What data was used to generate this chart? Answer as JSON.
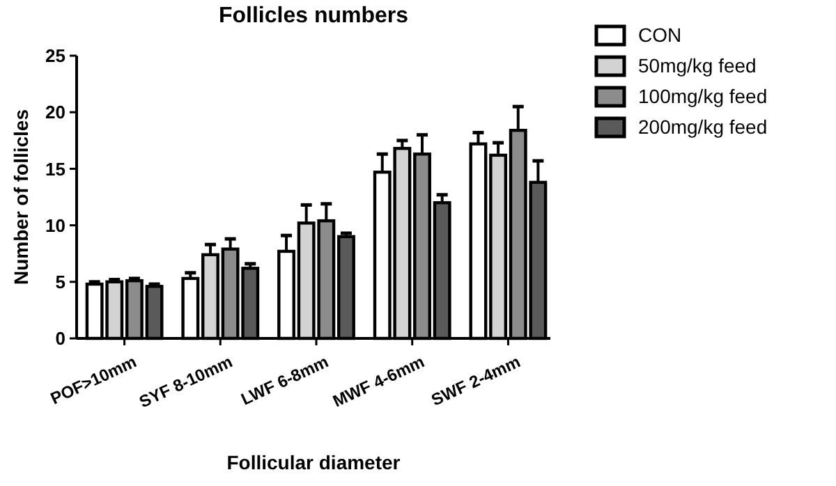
{
  "chart_data": {
    "type": "bar",
    "title": "Follicles numbers",
    "xlabel": "Follicular diameter",
    "ylabel": "Number of follicles",
    "categories": [
      "POF>10mm",
      "SYF 8-10mm",
      "LWF 6-8mm",
      "MWF 4-6mm",
      "SWF 2-4mm"
    ],
    "series": [
      {
        "name": "CON",
        "color": "#ffffff",
        "values": [
          4.8,
          5.3,
          7.7,
          14.7,
          17.2
        ],
        "errors": [
          [
            4.8,
            5.0
          ],
          [
            5.3,
            5.8
          ],
          [
            7.7,
            9.1
          ],
          [
            14.7,
            16.3
          ],
          [
            17.2,
            18.2
          ]
        ]
      },
      {
        "name": "50mg/kg feed",
        "color": "#d3d3d3",
        "values": [
          5.0,
          7.4,
          10.2,
          16.8,
          16.2
        ],
        "errors": [
          [
            5.0,
            5.2
          ],
          [
            7.4,
            8.3
          ],
          [
            10.2,
            11.8
          ],
          [
            16.8,
            17.5
          ],
          [
            16.2,
            17.3
          ]
        ]
      },
      {
        "name": "100mg/kg feed",
        "color": "#8c8c8c",
        "values": [
          5.1,
          7.9,
          10.4,
          16.3,
          18.4
        ],
        "errors": [
          [
            5.1,
            5.3
          ],
          [
            7.9,
            8.8
          ],
          [
            10.4,
            11.9
          ],
          [
            16.3,
            18.0
          ],
          [
            18.4,
            20.5
          ]
        ]
      },
      {
        "name": "200mg/kg feed",
        "color": "#5a5a5a",
        "values": [
          4.6,
          6.2,
          9.0,
          12.0,
          13.8
        ],
        "errors": [
          [
            4.6,
            4.8
          ],
          [
            6.2,
            6.6
          ],
          [
            9.0,
            9.3
          ],
          [
            12.0,
            12.7
          ],
          [
            13.8,
            15.7
          ]
        ]
      }
    ],
    "ylim": [
      0,
      25
    ],
    "yticks": [
      0,
      5,
      10,
      15,
      20,
      25
    ],
    "grid": false,
    "legend": "right"
  }
}
